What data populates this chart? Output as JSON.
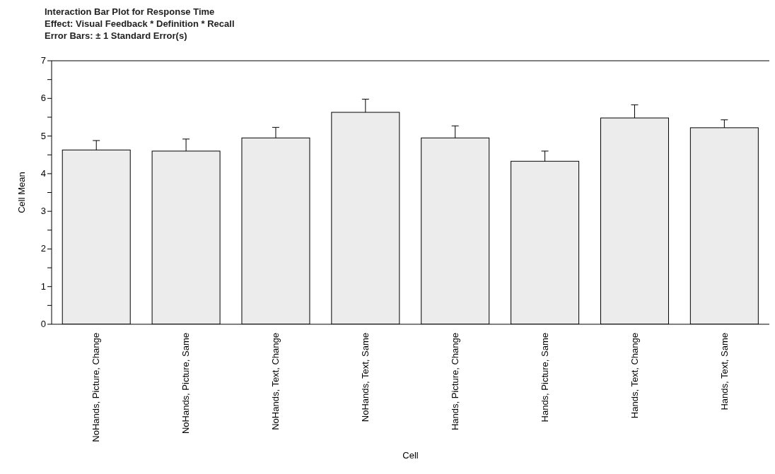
{
  "chart_data": {
    "type": "bar",
    "title": "Interaction Bar Plot for Response Time",
    "subtitle": "Effect: Visual Feedback * Definition * Recall",
    "annotations": [
      "Error Bars: ± 1 Standard Error(s)"
    ],
    "xlabel": "Cell",
    "ylabel": "Cell Mean",
    "categories": [
      "NoHands, Picture, Change",
      "NoHands, Picture, Same",
      "NoHands, Text, Change",
      "NoHands, Text, Same",
      "Hands, Picture, Change",
      "Hands, Picture, Same",
      "Hands, Text, Change",
      "Hands, Text, Same"
    ],
    "values": [
      4.63,
      4.6,
      4.95,
      5.63,
      4.95,
      4.33,
      5.48,
      5.22
    ],
    "errors": [
      0.25,
      0.32,
      0.28,
      0.35,
      0.32,
      0.27,
      0.35,
      0.21
    ],
    "color": "#ececec",
    "ylim": [
      0,
      7
    ],
    "yticks": [
      0,
      {
        "value": 0.5,
        "label": null
      },
      1,
      {
        "value": 1.5,
        "label": null
      },
      2,
      {
        "value": 2.5,
        "label": null
      },
      3,
      {
        "value": 3.5,
        "label": null
      },
      4,
      {
        "value": 4.5,
        "label": null
      },
      5,
      {
        "value": 5.5,
        "label": null
      },
      6,
      {
        "value": 6.5,
        "label": null
      },
      7
    ]
  }
}
